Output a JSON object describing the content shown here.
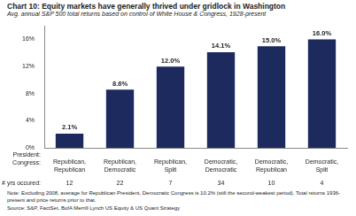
{
  "chart_data": {
    "type": "bar",
    "title": "Chart 10: Equity markets have generally thrived under gridlock in Washington",
    "subtitle": "Avg. annual S&P 500 total returns based on control of White House & Congress, 1928-present",
    "categories": [
      [
        "Republican,",
        "Republican"
      ],
      [
        "Republican,",
        "Democratic"
      ],
      [
        "Republican,",
        "Split"
      ],
      [
        "Democratic,",
        "Democratic"
      ],
      [
        "Democratic,",
        "Republican"
      ],
      [
        "Democratic,",
        "Split"
      ]
    ],
    "category_labels": [
      "President:",
      "Congress:"
    ],
    "values": [
      2.1,
      8.6,
      12.0,
      14.1,
      15.0,
      16.0
    ],
    "value_labels": [
      "2.1%",
      "8.6%",
      "12.0%",
      "14.1%",
      "15.0%",
      "16.0%"
    ],
    "data_labels": true,
    "years_label": "# yrs occured:",
    "years": [
      12,
      22,
      7,
      34,
      10,
      4
    ],
    "color": "#1c2a5e",
    "ylim": [
      0,
      18
    ],
    "yticks": [
      {
        "value": 0,
        "label": "0%"
      },
      {
        "value": 4,
        "label": "4%"
      },
      {
        "value": 8,
        "label": "8%"
      },
      {
        "value": 12,
        "label": "12%"
      },
      {
        "value": 16,
        "label": "16%"
      }
    ],
    "grid": false,
    "note": "Note: Excluding 2008, average for Republican President, Democratic Congress is 10.2% (still the second-weakest period). Total returns 1936-present and price returns prior to that.",
    "source": "Source: S&P, FactSet, BofA Merrill Lynch US Equity & US Quant Strategy"
  }
}
